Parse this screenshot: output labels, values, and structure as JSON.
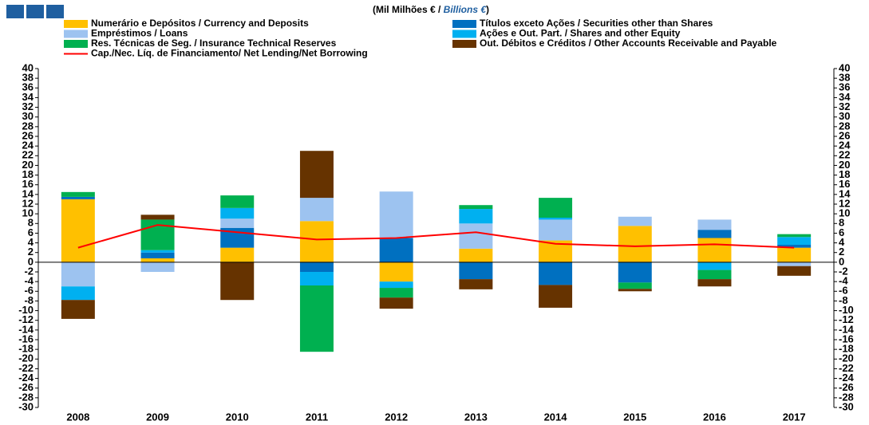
{
  "chart_data": {
    "type": "bar",
    "stacked": true,
    "title_pt": "(Mil Milhões € / ",
    "title_en": "Billions €",
    "title_end": ")",
    "categories": [
      "2008",
      "2009",
      "2010",
      "2011",
      "2012",
      "2013",
      "2014",
      "2015",
      "2016",
      "2017"
    ],
    "series": [
      {
        "name": "Numerário e Depósitos / Currency and Deposits",
        "color": "#ffc000",
        "values": [
          13,
          0.8,
          3,
          8.5,
          -4,
          2.8,
          4.5,
          7.5,
          5,
          3
        ]
      },
      {
        "name": "Títulos exceto Ações / Securities other than Shares",
        "color": "#0070c0",
        "values": [
          0.5,
          1.2,
          4.1,
          -2,
          5,
          -3.5,
          -4.7,
          -4.2,
          1.7,
          0.6
        ]
      },
      {
        "name": "Empréstimos / Loans",
        "color": "#9dc3f0",
        "values": [
          -5,
          -2,
          1.9,
          4.8,
          9.6,
          5.2,
          4.3,
          1.9,
          2.1,
          -0.8
        ]
      },
      {
        "name": "Ações e Out. Part. / Shares and other Equity",
        "color": "#00b0f0",
        "values": [
          -2.8,
          0.5,
          2.2,
          -2.8,
          -1.3,
          3,
          0.4,
          0,
          -1.6,
          1.6
        ]
      },
      {
        "name": "Res. Técnicas de Seg. / Insurance Technical Reserves",
        "color": "#00b050",
        "values": [
          1,
          6.3,
          2.6,
          -13.7,
          -2,
          0.8,
          4.1,
          -1.3,
          -1.9,
          0.6
        ]
      },
      {
        "name": "Out. Débitos e Créditos / Other Accounts Receivable and Payable",
        "color": "#663300",
        "values": [
          -3.9,
          1,
          -7.8,
          9.7,
          -2.3,
          -2.1,
          -4.7,
          -0.5,
          -1.5,
          -2
        ]
      }
    ],
    "line": {
      "name": "Cap./Nec. Líq. de Financiamento/ Net Lending/Net Borrowing",
      "color": "#ff0000",
      "values": [
        3,
        7.7,
        6.2,
        4.7,
        5,
        6.2,
        3.8,
        3.3,
        3.7,
        3
      ]
    },
    "ylim": [
      -30,
      40
    ],
    "yticks": [
      -30,
      -28,
      -26,
      -24,
      -22,
      -20,
      -18,
      -16,
      -14,
      -12,
      -10,
      -8,
      -6,
      -4,
      -2,
      0,
      2,
      4,
      6,
      8,
      10,
      12,
      14,
      16,
      18,
      20,
      22,
      24,
      26,
      28,
      30,
      32,
      34,
      36,
      38,
      40
    ],
    "y2lim": [
      -30,
      40
    ],
    "y2ticks": [
      -30,
      -28,
      -26,
      -24,
      -22,
      -20,
      -18,
      -16,
      -14,
      -12,
      -10,
      -8,
      -6,
      -4,
      -2,
      0,
      2,
      4,
      6,
      8,
      10,
      12,
      14,
      16,
      18,
      20,
      22,
      24,
      26,
      28,
      30,
      32,
      34,
      36,
      38,
      40
    ]
  }
}
